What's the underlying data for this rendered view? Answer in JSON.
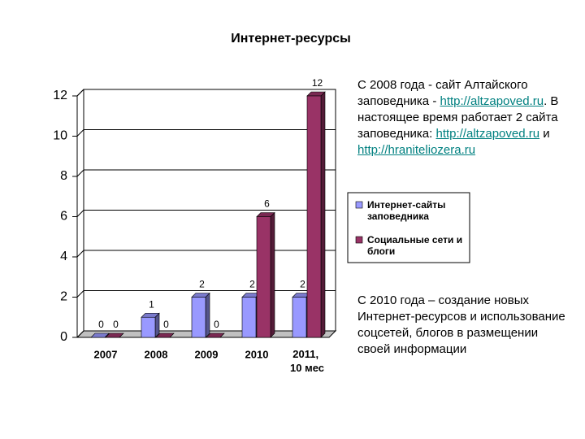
{
  "chart_data": {
    "type": "bar",
    "title": "Интернет-ресурсы",
    "categories": [
      "2007",
      "2008",
      "2009",
      "2010",
      "2011, 10 мес"
    ],
    "series": [
      {
        "name": "Интернет-сайты заповедника",
        "color": "#9999ff",
        "values": [
          0,
          1,
          2,
          2,
          2
        ]
      },
      {
        "name": "Социальные сети и блоги",
        "color": "#993366",
        "values": [
          0,
          0,
          0,
          6,
          12
        ]
      }
    ],
    "ylim": [
      0,
      12
    ],
    "yticks": [
      0,
      2,
      4,
      6,
      8,
      10,
      12
    ],
    "grid": true,
    "legend": "right"
  },
  "text_blocks": [
    {
      "parts": [
        {
          "text": "С 2008 года - сайт Алтайского заповедника - "
        },
        {
          "text": "http://altzapoved.ru",
          "link": true
        },
        {
          "text": ". В настоящее время работает 2 сайта заповедника: "
        },
        {
          "text": "http://altzapoved.ru",
          "link": true
        },
        {
          "text": "  и "
        },
        {
          "text": "http://hraniteliozera.ru",
          "link": true
        }
      ]
    },
    {
      "parts": [
        {
          "text": "С 2010 года – создание новых Интернет-ресурсов и использование соцсетей, блогов в размещении своей информации"
        }
      ]
    }
  ]
}
